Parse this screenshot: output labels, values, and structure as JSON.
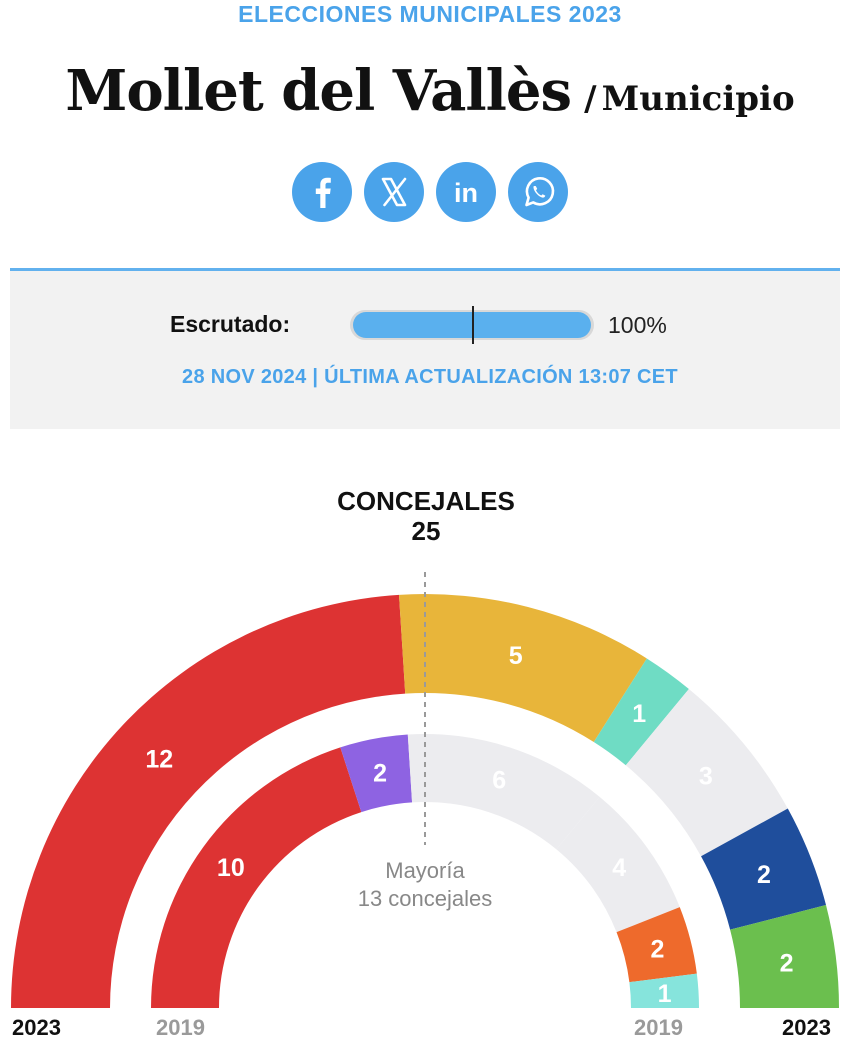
{
  "header": {
    "kicker": "ELECCIONES MUNICIPALES 2023",
    "title": "Mollet del Vallès",
    "separator": "/",
    "subtitle": "Municipio"
  },
  "social": [
    {
      "name": "facebook",
      "icon": "facebook-icon"
    },
    {
      "name": "x",
      "icon": "x-icon"
    },
    {
      "name": "linkedin",
      "icon": "linkedin-icon"
    },
    {
      "name": "whatsapp",
      "icon": "whatsapp-icon"
    }
  ],
  "scrutiny": {
    "label": "Escrutado:",
    "percent_text": "100%",
    "fraction": 1.0,
    "update": "28 NOV 2024 | ÚLTIMA ACTUALIZACIÓN 13:07 CET"
  },
  "seats": {
    "label": "CONCEJALES",
    "total": "25",
    "majority_line1": "Mayoría",
    "majority_line2": "13 concejales"
  },
  "colors": {
    "accent": "#4aa3ea",
    "red": "#dd3333",
    "yellow": "#e8b53a",
    "turquoise": "#6fdcc4",
    "light_grey": "#ececef",
    "blue": "#1f4e9c",
    "green": "#6bbf4e",
    "purple": "#8e63e2",
    "orange": "#ee6a2c",
    "light_turquoise": "#86e4dc"
  },
  "chart_data": {
    "type": "hemicycle",
    "total_seats": 25,
    "majority": 13,
    "rings": [
      {
        "year": "2023",
        "segments": [
          {
            "seats": 12,
            "color": "#dd3333",
            "label": "12"
          },
          {
            "seats": 5,
            "color": "#e8b53a",
            "label": "5"
          },
          {
            "seats": 1,
            "color": "#6fdcc4",
            "label": "1"
          },
          {
            "seats": 3,
            "color": "#ececef",
            "label": "3"
          },
          {
            "seats": 2,
            "color": "#1f4e9c",
            "label": "2"
          },
          {
            "seats": 2,
            "color": "#6bbf4e",
            "label": "2"
          }
        ]
      },
      {
        "year": "2019",
        "segments": [
          {
            "seats": 10,
            "color": "#dd3333",
            "label": "10"
          },
          {
            "seats": 2,
            "color": "#8e63e2",
            "label": "2"
          },
          {
            "seats": 6,
            "color": "#ececef",
            "label": "6"
          },
          {
            "seats": 4,
            "color": "#ececef",
            "label": "4"
          },
          {
            "seats": 2,
            "color": "#ee6a2c",
            "label": "2"
          },
          {
            "seats": 1,
            "color": "#86e4dc",
            "label": "1"
          }
        ]
      }
    ]
  }
}
